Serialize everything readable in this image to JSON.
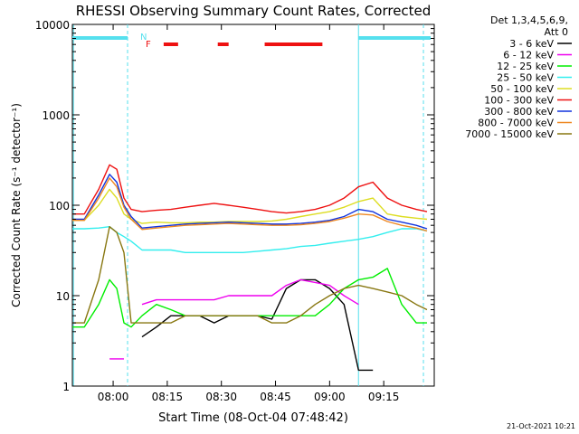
{
  "title": "RHESSI Observing Summary Count Rates, Corrected",
  "detectors": {
    "line1": "Det 1,3,4,5,6,9,",
    "line2": "Att 0"
  },
  "footer_date": "21-Oct-2021 10:21",
  "flags": {
    "n_label": "N",
    "f_label": "F"
  },
  "colors": {
    "flag_cyan": "#55e0ee",
    "flag_red": "#ee1111",
    "band1": "#000000",
    "band2": "#ee00ee",
    "band3": "#00ee00",
    "band4": "#33eeee",
    "band5": "#dddd22",
    "band6": "#ee1111",
    "band7": "#1133dd",
    "band8": "#ee8822",
    "band9": "#887711"
  },
  "chart_data": {
    "type": "line",
    "title": "RHESSI Observing Summary Count Rates, Corrected",
    "xlabel": "Start Time (08-Oct-04 07:48:42)",
    "ylabel": "Corrected Count Rate (s⁻¹ detector⁻¹)",
    "y_scale": "log",
    "xlim": [
      "07:48:42",
      "09:29:00"
    ],
    "ylim": [
      1,
      10000
    ],
    "x_ticks": [
      "08:00",
      "08:15",
      "08:30",
      "08:45",
      "09:00",
      "09:15"
    ],
    "y_ticks": [
      "1",
      "10",
      "100",
      "1000",
      "10000"
    ],
    "legend_position": "top-right",
    "time_points": [
      "07:48:42",
      "07:52",
      "07:56",
      "07:59",
      "08:01",
      "08:03",
      "08:05",
      "08:08",
      "08:12",
      "08:16",
      "08:20",
      "08:24",
      "08:28",
      "08:32",
      "08:36",
      "08:40",
      "08:44",
      "08:48",
      "08:52",
      "08:56",
      "09:00",
      "09:04",
      "09:08",
      "09:12",
      "09:16",
      "09:20",
      "09:24",
      "09:27"
    ],
    "series": [
      {
        "name": "3 - 6 keV",
        "color": "#000000",
        "values": [
          null,
          null,
          null,
          null,
          null,
          null,
          null,
          3.5,
          4.5,
          6,
          6,
          6,
          5,
          6,
          6,
          6,
          5.5,
          12,
          15,
          15,
          12,
          8,
          1.5,
          1.5,
          null,
          null,
          null,
          null
        ]
      },
      {
        "name": "6 - 12 keV",
        "color": "#ee00ee",
        "values": [
          null,
          null,
          null,
          2,
          2,
          2,
          null,
          8,
          9,
          9,
          9,
          9,
          9,
          10,
          10,
          10,
          10,
          13,
          15,
          14,
          13,
          10,
          8,
          null,
          null,
          null,
          null,
          null
        ]
      },
      {
        "name": "12 - 25 keV",
        "color": "#00ee00",
        "values": [
          4.5,
          4.5,
          8,
          15,
          12,
          5,
          4.5,
          6,
          8,
          7,
          6,
          6,
          6,
          6,
          6,
          6,
          6,
          6,
          6,
          6,
          8,
          12,
          15,
          16,
          20,
          8,
          5,
          5
        ]
      },
      {
        "name": "25 - 50 keV",
        "color": "#33eeee",
        "values": [
          55,
          55,
          56,
          58,
          50,
          45,
          40,
          32,
          32,
          32,
          30,
          30,
          30,
          30,
          30,
          31,
          32,
          33,
          35,
          36,
          38,
          40,
          42,
          45,
          50,
          55,
          55,
          52
        ]
      },
      {
        "name": "50 - 100 keV",
        "color": "#dddd22",
        "values": [
          68,
          68,
          100,
          150,
          120,
          80,
          70,
          63,
          65,
          64,
          64,
          65,
          65,
          66,
          66,
          66,
          67,
          70,
          75,
          80,
          85,
          95,
          110,
          120,
          80,
          75,
          72,
          70
        ]
      },
      {
        "name": "100 - 300 keV",
        "color": "#ee1111",
        "values": [
          80,
          80,
          150,
          280,
          250,
          120,
          90,
          85,
          88,
          90,
          95,
          100,
          105,
          100,
          95,
          90,
          85,
          82,
          85,
          90,
          100,
          120,
          160,
          180,
          120,
          100,
          90,
          85
        ]
      },
      {
        "name": "300 - 800 keV",
        "color": "#1133dd",
        "values": [
          70,
          70,
          130,
          220,
          180,
          100,
          75,
          56,
          58,
          60,
          62,
          63,
          64,
          65,
          64,
          63,
          62,
          62,
          63,
          65,
          68,
          75,
          90,
          85,
          70,
          65,
          60,
          55
        ]
      },
      {
        "name": "800 - 7000 keV",
        "color": "#ee8822",
        "values": [
          68,
          68,
          120,
          200,
          160,
          95,
          70,
          54,
          56,
          58,
          60,
          61,
          62,
          63,
          62,
          61,
          60,
          60,
          61,
          63,
          66,
          72,
          80,
          78,
          66,
          60,
          56,
          52
        ]
      },
      {
        "name": "7000 - 15000 keV",
        "color": "#887711",
        "values": [
          5,
          5,
          15,
          58,
          50,
          30,
          5,
          5,
          5,
          5,
          6,
          6,
          6,
          6,
          6,
          6,
          5,
          5,
          6,
          8,
          10,
          12,
          13,
          12,
          11,
          10,
          8,
          7
        ]
      }
    ]
  }
}
